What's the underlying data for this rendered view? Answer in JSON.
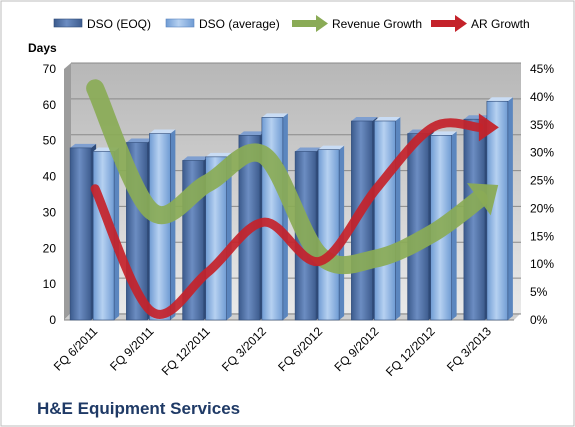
{
  "chart_data": {
    "type": "bar",
    "title": "H&E Equipment Services",
    "ylabel": "Days",
    "xlabel": "",
    "categories": [
      "FQ 6/2011",
      "FQ 9/2011",
      "FQ 12/2011",
      "FQ 3/2012",
      "FQ 6/2012",
      "FQ 9/2012",
      "FQ 12/2012",
      "FQ 3/2013"
    ],
    "ylim": [
      0,
      70
    ],
    "yticks": [
      "0",
      "10",
      "20",
      "30",
      "40",
      "50",
      "60",
      "70"
    ],
    "y2lim": [
      0,
      45
    ],
    "y2ticks": [
      "0%",
      "5%",
      "10%",
      "15%",
      "20%",
      "25%",
      "30%",
      "35%",
      "40%",
      "45%"
    ],
    "series": [
      {
        "name": "DSO (EOQ)",
        "kind": "bar",
        "axis": "left",
        "color": "#4f6fa3",
        "values": [
          48,
          49.5,
          44.5,
          51.5,
          47,
          55.5,
          52,
          56
        ]
      },
      {
        "name": "DSO (average)",
        "kind": "bar",
        "axis": "left",
        "color": "#8db3e2",
        "values": [
          47,
          52,
          45.5,
          56.5,
          47.5,
          55.5,
          51.5,
          61
        ]
      },
      {
        "name": "Revenue Growth",
        "kind": "line",
        "axis": "right",
        "color": "#8aab56",
        "values": [
          41,
          19,
          24,
          29,
          11,
          10.5,
          15,
          22
        ]
      },
      {
        "name": "AR Growth",
        "kind": "line",
        "axis": "right",
        "color": "#c4222a",
        "values": [
          23,
          1,
          8,
          17,
          10,
          23,
          34,
          34
        ]
      }
    ],
    "grid": true,
    "legend_position": "top"
  }
}
